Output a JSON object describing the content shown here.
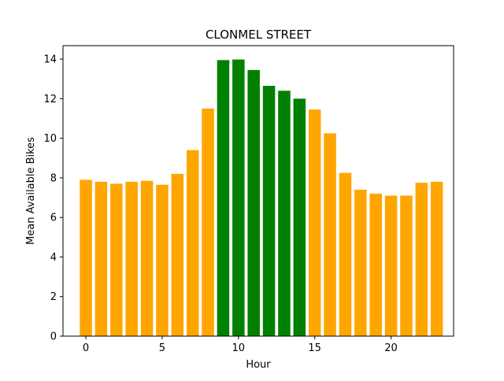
{
  "chart_data": {
    "type": "bar",
    "title": "CLONMEL STREET",
    "xlabel": "Hour",
    "ylabel": "Mean Available Bikes",
    "x": [
      0,
      1,
      2,
      3,
      4,
      5,
      6,
      7,
      8,
      9,
      10,
      11,
      12,
      13,
      14,
      15,
      16,
      17,
      18,
      19,
      20,
      21,
      22,
      23
    ],
    "values": [
      7.9,
      7.8,
      7.7,
      7.8,
      7.85,
      7.65,
      8.2,
      9.4,
      11.5,
      13.95,
      13.98,
      13.45,
      12.65,
      12.4,
      12.0,
      11.45,
      10.25,
      8.25,
      7.4,
      7.2,
      7.1,
      7.1,
      7.75,
      7.8
    ],
    "colors": [
      "#ffa500",
      "#ffa500",
      "#ffa500",
      "#ffa500",
      "#ffa500",
      "#ffa500",
      "#ffa500",
      "#ffa500",
      "#ffa500",
      "#008000",
      "#008000",
      "#008000",
      "#008000",
      "#008000",
      "#008000",
      "#ffa500",
      "#ffa500",
      "#ffa500",
      "#ffa500",
      "#ffa500",
      "#ffa500",
      "#ffa500",
      "#ffa500",
      "#ffa500"
    ],
    "bar_color_default": "#ffa500",
    "bar_color_highlight": "#008000",
    "xlim": [
      -1.5,
      24.1
    ],
    "ylim": [
      0,
      14.68
    ],
    "xticks": [
      "0",
      "5",
      "10",
      "15",
      "20"
    ],
    "yticks": [
      "0",
      "2",
      "4",
      "6",
      "8",
      "10",
      "12",
      "14"
    ],
    "grid": false,
    "legend": false
  }
}
